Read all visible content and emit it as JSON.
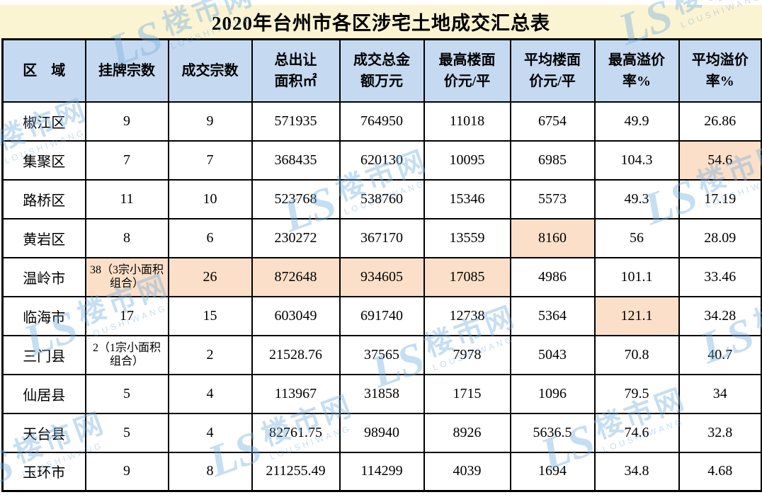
{
  "colors": {
    "title_bg": "#fbf4d2",
    "header_bg": "#c5d9f1",
    "highlight_bg": "#fbdfc8",
    "watermark": "#7ab1e0",
    "border": "#000000"
  },
  "watermark": {
    "logo": "LS",
    "name": "楼市网",
    "latin": "LOUSHIWANG"
  },
  "chart_data": {
    "type": "table",
    "title": "2020年台州市各区涉宅土地成交汇总表",
    "columns": [
      "区　域",
      "挂牌宗数",
      "成交宗数",
      "总出让\n面积㎡",
      "成交总金\n额万元",
      "最高楼面\n价元/平",
      "平均楼面\n价元/平",
      "最高溢价\n率%",
      "平均溢价\n率%"
    ],
    "rows": [
      {
        "cells": [
          "椒江区",
          "9",
          "9",
          "571935",
          "764950",
          "11018",
          "6754",
          "49.9",
          "26.86"
        ],
        "highlight": []
      },
      {
        "cells": [
          "集聚区",
          "7",
          "7",
          "368435",
          "620130",
          "10095",
          "6985",
          "104.3",
          "54.6"
        ],
        "highlight": [
          8
        ]
      },
      {
        "cells": [
          "路桥区",
          "11",
          "10",
          "523768",
          "538760",
          "15346",
          "5573",
          "49.3",
          "17.19"
        ],
        "highlight": []
      },
      {
        "cells": [
          "黄岩区",
          "8",
          "6",
          "230272",
          "367170",
          "13559",
          "8160",
          "56",
          "28.09"
        ],
        "highlight": [
          6
        ]
      },
      {
        "cells": [
          "温岭市",
          "38（3宗小面积组合）",
          "26",
          "872648",
          "934605",
          "17085",
          "4986",
          "101.1",
          "33.46"
        ],
        "highlight": [
          1,
          2,
          3,
          4,
          5
        ]
      },
      {
        "cells": [
          "临海市",
          "17",
          "15",
          "603049",
          "691740",
          "12738",
          "5364",
          "121.1",
          "34.28"
        ],
        "highlight": [
          7
        ]
      },
      {
        "cells": [
          "三门县",
          "2（1宗小面积组合）",
          "2",
          "21528.76",
          "37565",
          "7978",
          "5043",
          "70.8",
          "40.7"
        ],
        "highlight": []
      },
      {
        "cells": [
          "仙居县",
          "5",
          "4",
          "113967",
          "31858",
          "1715",
          "1096",
          "79.5",
          "34"
        ],
        "highlight": []
      },
      {
        "cells": [
          "天台县",
          "5",
          "4",
          "82761.75",
          "98940",
          "8926",
          "5636.5",
          "74.6",
          "32.8"
        ],
        "highlight": []
      },
      {
        "cells": [
          "玉环市",
          "9",
          "8",
          "211255.49",
          "114299",
          "4039",
          "1694",
          "34.8",
          "4.68"
        ],
        "highlight": []
      }
    ]
  }
}
